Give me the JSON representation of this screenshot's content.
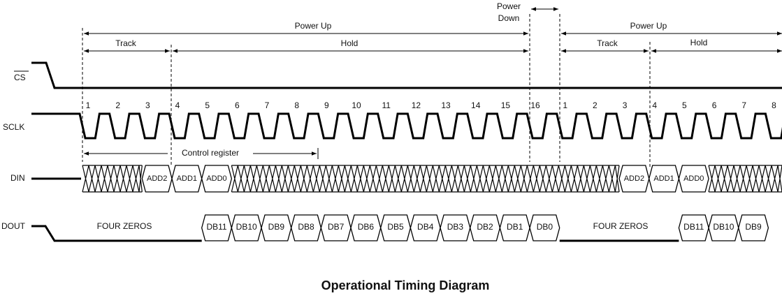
{
  "labels": {
    "power_up_1": "Power Up",
    "power_down_line1": "Power",
    "power_down_line2": "Down",
    "power_up_2": "Power Up",
    "track_1": "Track",
    "hold_1": "Hold",
    "track_2": "Track",
    "hold_2": "Hold",
    "control_register": "Control register"
  },
  "signals": {
    "cs": "CS",
    "sclk": "SCLK",
    "din": "DIN",
    "dout": "DOUT"
  },
  "sclk_numbers": [
    1,
    2,
    3,
    4,
    5,
    6,
    7,
    8,
    9,
    10,
    11,
    12,
    13,
    14,
    15,
    16,
    1,
    2,
    3,
    4,
    5,
    6,
    7,
    8
  ],
  "din_cells": [
    "ADD2",
    "ADD1",
    "ADD0",
    "ADD2",
    "ADD1",
    "ADD0"
  ],
  "dout_cells": [
    "FOUR ZEROS",
    "DB11",
    "DB10",
    "DB9",
    "DB8",
    "DB7",
    "DB6",
    "DB5",
    "DB4",
    "DB3",
    "DB2",
    "DB1",
    "DB0",
    "FOUR ZEROS",
    "DB11",
    "DB10",
    "DB9"
  ],
  "title": "Operational Timing Diagram"
}
